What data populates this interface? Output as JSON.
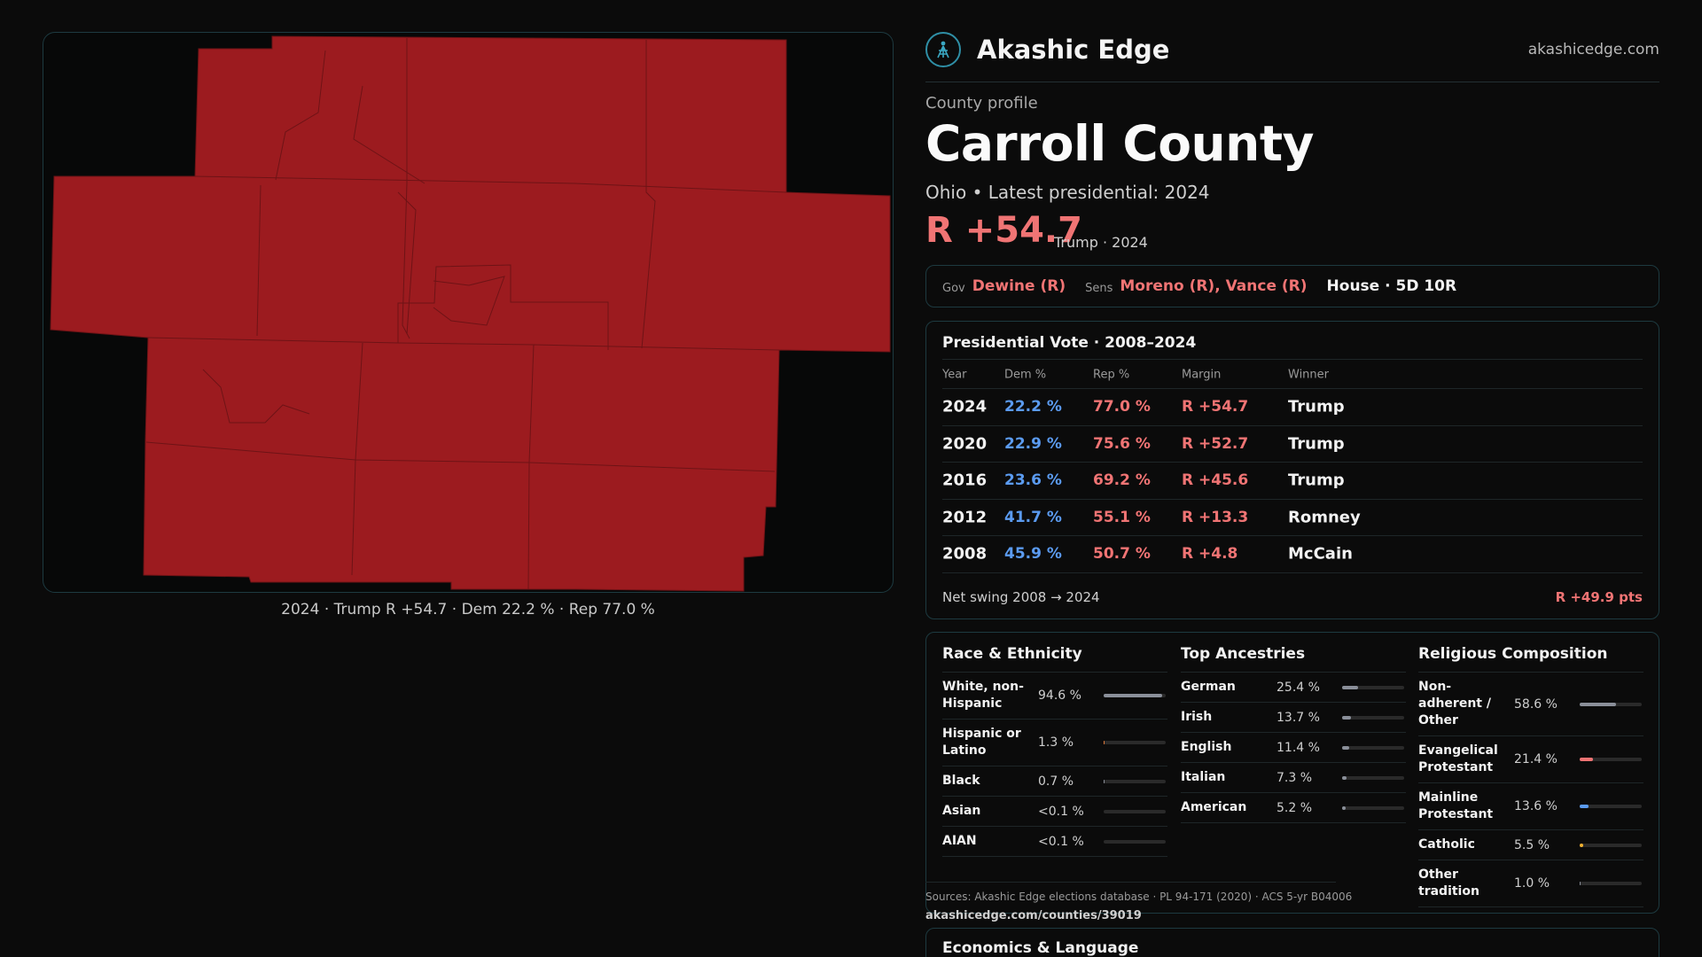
{
  "brand": {
    "name": "Akashic Edge",
    "domain": "akashicedge.com"
  },
  "profile": {
    "eyebrow": "County profile",
    "title": "Carroll County",
    "subline": "Ohio • Latest presidential: 2024",
    "margin": "R +54.7",
    "margin_note": "Trump · 2024"
  },
  "offices": {
    "gov_label": "Gov",
    "gov": "Dewine (R)",
    "sens_label": "Sens",
    "sens": "Moreno (R), Vance (R)",
    "house": "House · 5D 10R"
  },
  "map": {
    "caption": "2024 · Trump R +54.7 · Dem 22.2 % · Rep 77.0 %",
    "fill_color": "#9c1b1f"
  },
  "presidential": {
    "title": "Presidential Vote · 2008–2024",
    "columns": [
      "Year",
      "Dem %",
      "Rep %",
      "Margin",
      "Winner"
    ],
    "rows": [
      {
        "year": "2024",
        "dem": "22.2 %",
        "rep": "77.0 %",
        "margin": "R +54.7",
        "winner": "Trump"
      },
      {
        "year": "2020",
        "dem": "22.9 %",
        "rep": "75.6 %",
        "margin": "R +52.7",
        "winner": "Trump"
      },
      {
        "year": "2016",
        "dem": "23.6 %",
        "rep": "69.2 %",
        "margin": "R +45.6",
        "winner": "Trump"
      },
      {
        "year": "2012",
        "dem": "41.7 %",
        "rep": "55.1 %",
        "margin": "R +13.3",
        "winner": "Romney"
      },
      {
        "year": "2008",
        "dem": "45.9 %",
        "rep": "50.7 %",
        "margin": "R +4.8",
        "winner": "McCain"
      }
    ],
    "swing_label": "Net swing 2008 → 2024",
    "swing_value": "R +49.9 pts"
  },
  "race": {
    "title": "Race & Ethnicity",
    "rows": [
      {
        "name": "White, non-Hispanic",
        "pct": "94.6 %",
        "share": 0.946,
        "color": "#8a8f99"
      },
      {
        "name": "Hispanic or Latino",
        "pct": "1.3 %",
        "share": 0.013,
        "color": "#e07a3a"
      },
      {
        "name": "Black",
        "pct": "0.7 %",
        "share": 0.007,
        "color": "#8a8f99"
      },
      {
        "name": "Asian",
        "pct": "<0.1 %",
        "share": 0.0,
        "color": "#8a8f99"
      },
      {
        "name": "AIAN",
        "pct": "<0.1 %",
        "share": 0.0,
        "color": "#8a8f99"
      }
    ]
  },
  "ancestry": {
    "title": "Top Ancestries",
    "rows": [
      {
        "name": "German",
        "pct": "25.4 %",
        "share": 0.254,
        "color": "#8a8f99"
      },
      {
        "name": "Irish",
        "pct": "13.7 %",
        "share": 0.137,
        "color": "#8a8f99"
      },
      {
        "name": "English",
        "pct": "11.4 %",
        "share": 0.114,
        "color": "#8a8f99"
      },
      {
        "name": "Italian",
        "pct": "7.3 %",
        "share": 0.073,
        "color": "#8a8f99"
      },
      {
        "name": "American",
        "pct": "5.2 %",
        "share": 0.052,
        "color": "#8a8f99"
      }
    ]
  },
  "religion": {
    "title": "Religious Composition",
    "rows": [
      {
        "name": "Non-adherent / Other",
        "pct": "58.6 %",
        "share": 0.586,
        "color": "#8a8f99"
      },
      {
        "name": "Evangelical Protestant",
        "pct": "21.4 %",
        "share": 0.214,
        "color": "#f07474"
      },
      {
        "name": "Mainline Protestant",
        "pct": "13.6 %",
        "share": 0.136,
        "color": "#5b9bf0"
      },
      {
        "name": "Catholic",
        "pct": "5.5 %",
        "share": 0.055,
        "color": "#f0b030"
      },
      {
        "name": "Other tradition",
        "pct": "1.0 %",
        "share": 0.01,
        "color": "#8a8f99"
      }
    ]
  },
  "footer": {
    "sources": "Sources: Akashic Edge elections database · PL 94-171 (2020) · ACS 5-yr B04006",
    "permalink": "akashicedge.com/counties/39019",
    "econ_title": "Economics & Language"
  }
}
